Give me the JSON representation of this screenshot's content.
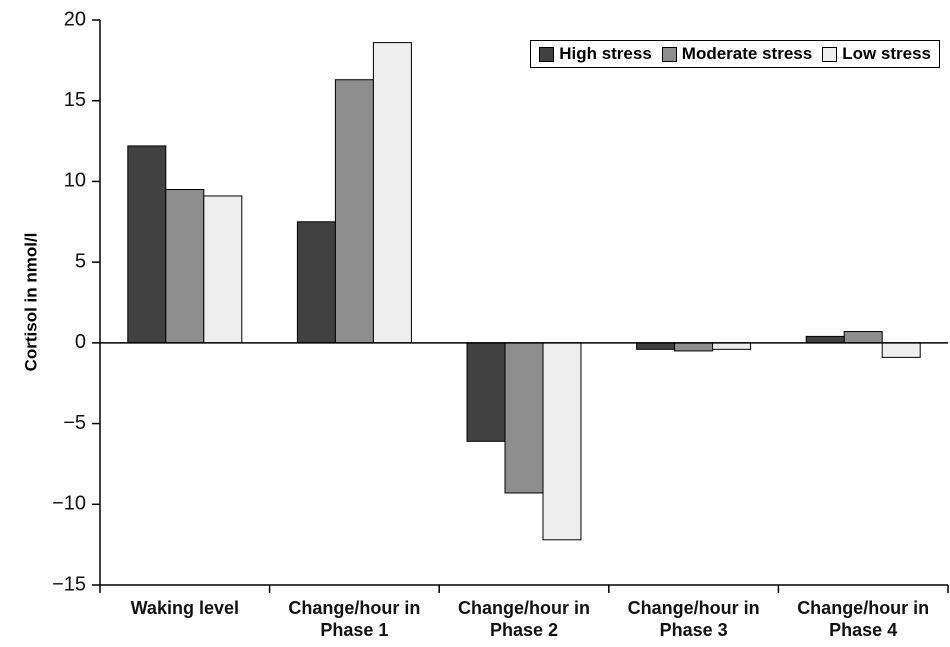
{
  "chart_data": {
    "type": "bar",
    "y_label": "Cortisol in nmol/l",
    "categories": [
      "Waking level",
      "Change/hour in Phase 1",
      "Change/hour in Phase 2",
      "Change/hour in Phase 3",
      "Change/hour in Phase 4"
    ],
    "series": [
      {
        "name": "High stress",
        "color": "#414141",
        "values": [
          12.2,
          7.5,
          -6.1,
          -0.4,
          0.4
        ]
      },
      {
        "name": "Moderate stress",
        "color": "#8e8e8e",
        "values": [
          9.5,
          16.3,
          -9.3,
          -0.5,
          0.7
        ]
      },
      {
        "name": "Low stress",
        "color": "#eeeeee",
        "values": [
          9.1,
          18.6,
          -12.2,
          -0.4,
          -0.9
        ]
      }
    ],
    "ylim": [
      -15,
      20
    ],
    "yticks": [
      {
        "value": -15,
        "label": "−15"
      },
      {
        "value": -10,
        "label": "−10"
      },
      {
        "value": -5,
        "label": "−5"
      },
      0,
      5,
      10,
      15,
      20
    ],
    "legend": "upper right"
  }
}
